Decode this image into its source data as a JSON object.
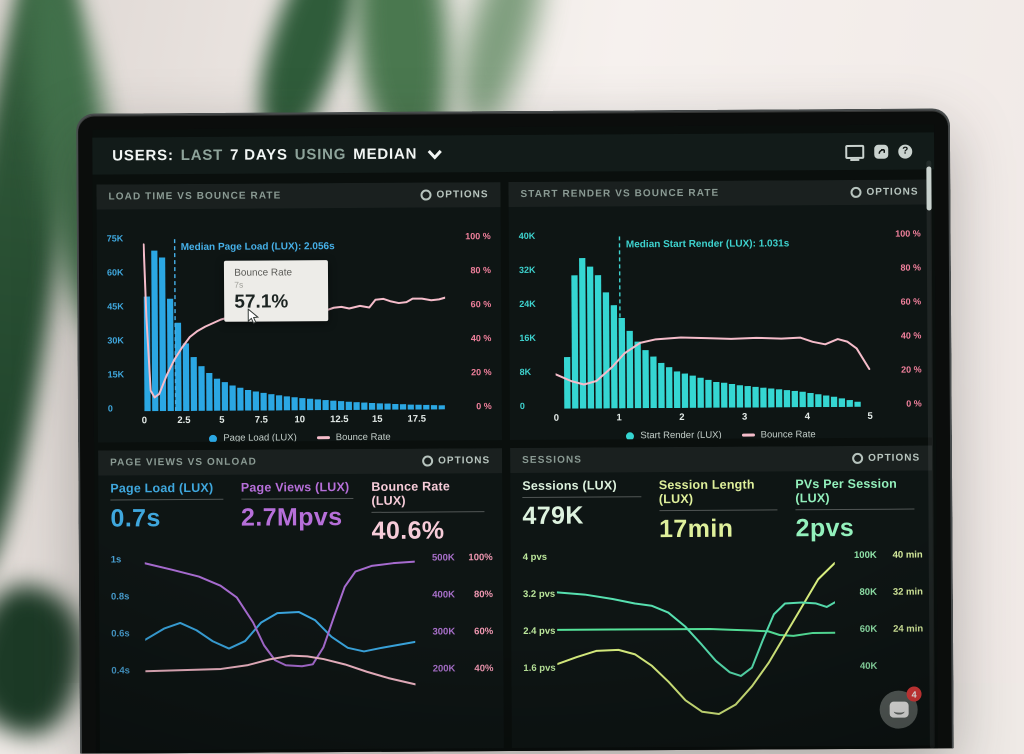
{
  "header": {
    "title_parts": [
      {
        "text": "USERS:"
      },
      {
        "text": "LAST"
      },
      {
        "text": "7 DAYS"
      },
      {
        "text": "USING"
      },
      {
        "text": "MEDIAN"
      }
    ],
    "icons": [
      "display-icon",
      "share-icon",
      "help-icon"
    ],
    "help_glyph": "?"
  },
  "panels": [
    {
      "title": "LOAD TIME VS BOUNCE RATE",
      "options_label": "OPTIONS"
    },
    {
      "title": "START RENDER VS BOUNCE RATE",
      "options_label": "OPTIONS"
    },
    {
      "title": "PAGE VIEWS VS ONLOAD",
      "options_label": "OPTIONS",
      "metrics": [
        {
          "label": "Page Load (LUX)",
          "value": "0.7s",
          "color": "#3fa7dd"
        },
        {
          "label": "Page Views (LUX)",
          "value": "2.7Mpvs",
          "color": "#b66fd9"
        },
        {
          "label": "Bounce Rate (LUX)",
          "value": "40.6%",
          "color": "#f7ccd9"
        }
      ]
    },
    {
      "title": "SESSIONS",
      "options_label": "OPTIONS",
      "metrics": [
        {
          "label": "Sessions (LUX)",
          "value": "479K",
          "color": "#ddf2de"
        },
        {
          "label": "Session Length (LUX)",
          "value": "17min",
          "color": "#dff09b"
        },
        {
          "label": "PVs Per Session (LUX)",
          "value": "2pvs",
          "color": "#93f0bc"
        }
      ]
    }
  ],
  "chat_launcher": {
    "badge": "4"
  },
  "chart_data": [
    {
      "type": "bar",
      "title": "LOAD TIME VS BOUNCE RATE",
      "x_max": 19.5,
      "x_ticks": [
        "0",
        "2.5",
        "5",
        "7.5",
        "10",
        "12.5",
        "15",
        "17.5"
      ],
      "x_tick_values": [
        0,
        2.5,
        5,
        7.5,
        10,
        12.5,
        15,
        17.5
      ],
      "y_left": {
        "labels": [
          "75K",
          "60K",
          "45K",
          "30K",
          "15K",
          "0"
        ],
        "max": 75000,
        "color": "#3fa7dd"
      },
      "y_right": {
        "labels": [
          "100 %",
          "80 %",
          "60 %",
          "40 %",
          "20 %",
          "0 %"
        ],
        "max": 100,
        "color": "#f0809c"
      },
      "bars": {
        "name": "Page Load (LUX)",
        "color": "#2ba7e3",
        "bin_start": 0,
        "bin_width": 0.5,
        "values": [
          50000,
          70000,
          67000,
          49000,
          38500,
          29500,
          23500,
          19500,
          16500,
          14000,
          12500,
          11000,
          10000,
          9000,
          8300,
          7700,
          7100,
          6600,
          6100,
          5700,
          5300,
          5000,
          4700,
          4400,
          4100,
          3900,
          3600,
          3400,
          3200,
          3000,
          2800,
          2700,
          2500,
          2400,
          2200,
          2100,
          2000,
          1900,
          1800
        ]
      },
      "line": {
        "name": "Bounce Rate",
        "color": "#f5bcca",
        "unit": "%",
        "points": [
          [
            0.05,
            97
          ],
          [
            0.2,
            55
          ],
          [
            0.45,
            12
          ],
          [
            0.7,
            8
          ],
          [
            1.0,
            10
          ],
          [
            1.5,
            21
          ],
          [
            2.0,
            30
          ],
          [
            2.5,
            37
          ],
          [
            3.0,
            43
          ],
          [
            3.5,
            46.5
          ],
          [
            4.0,
            49
          ],
          [
            5.0,
            53
          ],
          [
            6.0,
            55.5
          ],
          [
            7.0,
            57.1
          ],
          [
            7.6,
            57.6
          ],
          [
            8.2,
            58
          ],
          [
            9.0,
            58
          ],
          [
            9.7,
            57
          ],
          [
            10.3,
            56
          ],
          [
            11.0,
            57.5
          ],
          [
            11.8,
            58
          ],
          [
            12.3,
            59.5
          ],
          [
            12.8,
            60
          ],
          [
            13.3,
            59
          ],
          [
            14.0,
            60.5
          ],
          [
            14.6,
            59.5
          ],
          [
            15.0,
            64
          ],
          [
            15.5,
            64.5
          ],
          [
            16.0,
            63
          ],
          [
            16.5,
            62
          ],
          [
            17.0,
            62.5
          ],
          [
            17.4,
            64.5
          ],
          [
            18.0,
            64.5
          ],
          [
            18.6,
            63.5
          ],
          [
            19.1,
            64
          ],
          [
            19.5,
            65
          ]
        ]
      },
      "median": {
        "value": 2.056,
        "label": "Median Page Load (LUX): 2.056s",
        "color": "#46b0e8"
      },
      "tooltip": {
        "title": "Bounce Rate",
        "subtitle": "7s",
        "value": "57.1%",
        "at_x": 7
      },
      "legend": [
        {
          "swatch": "dot",
          "color": "#2ba7e3",
          "label": "Page Load (LUX)"
        },
        {
          "swatch": "line",
          "color": "#f5bcca",
          "label": "Bounce Rate"
        }
      ]
    },
    {
      "type": "bar",
      "title": "START RENDER VS BOUNCE RATE",
      "x_max": 5.1,
      "x_ticks": [
        "0",
        "1",
        "2",
        "3",
        "4",
        "5"
      ],
      "x_tick_values": [
        0,
        1,
        2,
        3,
        4,
        5
      ],
      "y_left": {
        "labels": [
          "40K",
          "32K",
          "24K",
          "16K",
          "8K",
          "0"
        ],
        "max": 40000,
        "color": "#3ed3cf"
      },
      "y_right": {
        "labels": [
          "100 %",
          "80 %",
          "60 %",
          "40 %",
          "20 %",
          "0 %"
        ],
        "max": 100,
        "color": "#f0809c"
      },
      "bars": {
        "name": "Start Render (LUX)",
        "color": "#35d6d2",
        "bin_start": 0.125,
        "bin_width": 0.125,
        "values": [
          12000,
          31000,
          35000,
          33000,
          31000,
          27000,
          24000,
          21000,
          18000,
          15500,
          13500,
          12000,
          10500,
          9500,
          8500,
          8000,
          7500,
          7000,
          6500,
          6000,
          5800,
          5500,
          5200,
          5000,
          4800,
          4600,
          4400,
          4200,
          4000,
          3800,
          3600,
          3300,
          3000,
          2700,
          2400,
          2000,
          1600,
          1200
        ]
      },
      "line": {
        "name": "Bounce Rate",
        "color": "#f5bcca",
        "unit": "%",
        "points": [
          [
            0,
            20
          ],
          [
            0.25,
            16
          ],
          [
            0.45,
            14
          ],
          [
            0.65,
            16
          ],
          [
            0.9,
            24
          ],
          [
            1.1,
            32
          ],
          [
            1.35,
            38
          ],
          [
            1.6,
            40
          ],
          [
            2.0,
            41
          ],
          [
            2.4,
            40.5
          ],
          [
            2.8,
            40
          ],
          [
            3.2,
            40.5
          ],
          [
            3.6,
            40
          ],
          [
            3.9,
            40.5
          ],
          [
            4.1,
            38
          ],
          [
            4.3,
            36.5
          ],
          [
            4.5,
            39.5
          ],
          [
            4.65,
            38
          ],
          [
            4.8,
            34
          ],
          [
            5.0,
            22
          ]
        ]
      },
      "median": {
        "value": 1.031,
        "label": "Median Start Render (LUX): 1.031s",
        "color": "#3ed3cf"
      },
      "legend": [
        {
          "swatch": "dot",
          "color": "#35d6d2",
          "label": "Start Render (LUX)"
        },
        {
          "swatch": "line",
          "color": "#f5bcca",
          "label": "Bounce Rate"
        }
      ]
    },
    {
      "type": "line",
      "title": "PAGE VIEWS VS ONLOAD",
      "y_left": {
        "labels": [
          "1s",
          "0.8s",
          "0.6s",
          "0.4s"
        ],
        "color": "#4aa3d6"
      },
      "y_right": [
        {
          "labels": [
            "500K",
            "400K",
            "300K",
            "200K"
          ],
          "color": "#a76fc9"
        },
        {
          "labels": [
            "100%",
            "80%",
            "60%",
            "40%"
          ],
          "color": "#ef97b1"
        }
      ],
      "series": [
        {
          "name": "Page Load (LUX)",
          "unit": "s",
          "color": "#3aa5de",
          "scale": {
            "top": 1.0,
            "bottom": 0.4
          },
          "points": [
            [
              0,
              0.57
            ],
            [
              7,
              0.63
            ],
            [
              13,
              0.66
            ],
            [
              19,
              0.62
            ],
            [
              25,
              0.56
            ],
            [
              31,
              0.52
            ],
            [
              37,
              0.56
            ],
            [
              43,
              0.66
            ],
            [
              49,
              0.71
            ],
            [
              57,
              0.715
            ],
            [
              63,
              0.67
            ],
            [
              69,
              0.58
            ],
            [
              75,
              0.52
            ],
            [
              81,
              0.5
            ],
            [
              88,
              0.52
            ],
            [
              100,
              0.55
            ]
          ]
        },
        {
          "name": "Page Views (LUX)",
          "unit": "pvs",
          "color": "#a66bcf",
          "scale": {
            "top": 500000,
            "bottom": 200000
          },
          "points": [
            [
              0,
              492000
            ],
            [
              10,
              474000
            ],
            [
              20,
              455000
            ],
            [
              28,
              430000
            ],
            [
              34,
              398000
            ],
            [
              40,
              330000
            ],
            [
              44,
              268000
            ],
            [
              48,
              228000
            ],
            [
              52,
              214000
            ],
            [
              58,
              211000
            ],
            [
              62,
              216000
            ],
            [
              66,
              262000
            ],
            [
              70,
              345000
            ],
            [
              74,
              425000
            ],
            [
              78,
              466000
            ],
            [
              84,
              481000
            ],
            [
              92,
              488000
            ],
            [
              100,
              492000
            ]
          ]
        },
        {
          "name": "Bounce Rate (LUX)",
          "unit": "%",
          "color": "#f0b6c5",
          "scale": {
            "top": 100,
            "bottom": 40
          },
          "points": [
            [
              0,
              40
            ],
            [
              14,
              40.5
            ],
            [
              28,
              41
            ],
            [
              38,
              43
            ],
            [
              46,
              46
            ],
            [
              54,
              48
            ],
            [
              60,
              47.5
            ],
            [
              66,
              46
            ],
            [
              74,
              43
            ],
            [
              82,
              39
            ],
            [
              90,
              35.5
            ],
            [
              100,
              32
            ]
          ]
        }
      ]
    },
    {
      "type": "line",
      "title": "SESSIONS",
      "y_left": {
        "labels": [
          "4 pvs",
          "3.2 pvs",
          "2.4 pvs",
          "1.6 pvs"
        ],
        "color": "#bce79c"
      },
      "y_right": [
        {
          "labels": [
            "100K",
            "80K",
            "60K",
            "40K"
          ],
          "color": "#90e3a9"
        },
        {
          "labels": [
            "40 min",
            "32 min",
            "24 min"
          ],
          "color": "#d9ef9f"
        }
      ],
      "series": [
        {
          "name": "Sessions (LUX)",
          "unit": "sessions",
          "color": "#55e39a",
          "scale": {
            "top": 100000,
            "bottom": 40000
          },
          "points": [
            [
              0,
              61000
            ],
            [
              20,
              61000
            ],
            [
              40,
              61000
            ],
            [
              55,
              61000
            ],
            [
              62,
              60500
            ],
            [
              70,
              60000
            ],
            [
              76,
              59500
            ],
            [
              80,
              57500
            ],
            [
              85,
              57000
            ],
            [
              92,
              58500
            ],
            [
              100,
              58500
            ]
          ]
        },
        {
          "name": "Session Length (LUX)",
          "unit": "min",
          "color": "#d9ef7f",
          "scale": {
            "top": 40,
            "bottom": 16
          },
          "points": [
            [
              0,
              17
            ],
            [
              7,
              18.5
            ],
            [
              14,
              19.8
            ],
            [
              22,
              20
            ],
            [
              28,
              19
            ],
            [
              34,
              16.5
            ],
            [
              40,
              13
            ],
            [
              46,
              9
            ],
            [
              52,
              6.5
            ],
            [
              58,
              6
            ],
            [
              64,
              8
            ],
            [
              70,
              12
            ],
            [
              76,
              17
            ],
            [
              82,
              23
            ],
            [
              88,
              29
            ],
            [
              94,
              35
            ],
            [
              100,
              38.5
            ]
          ]
        },
        {
          "name": "PVs Per Session (LUX)",
          "unit": "pvs",
          "color": "#57e0b0",
          "scale": {
            "top": 4,
            "bottom": 1.6
          },
          "points": [
            [
              0,
              3.25
            ],
            [
              10,
              3.2
            ],
            [
              20,
              3.1
            ],
            [
              28,
              3.0
            ],
            [
              34,
              2.95
            ],
            [
              40,
              2.8
            ],
            [
              46,
              2.5
            ],
            [
              52,
              2.1
            ],
            [
              57,
              1.75
            ],
            [
              62,
              1.5
            ],
            [
              66,
              1.42
            ],
            [
              70,
              1.6
            ],
            [
              74,
              2.2
            ],
            [
              78,
              2.75
            ],
            [
              82,
              2.98
            ],
            [
              88,
              3.0
            ],
            [
              93,
              2.98
            ],
            [
              97,
              2.9
            ],
            [
              100,
              3.0
            ]
          ]
        }
      ]
    }
  ]
}
